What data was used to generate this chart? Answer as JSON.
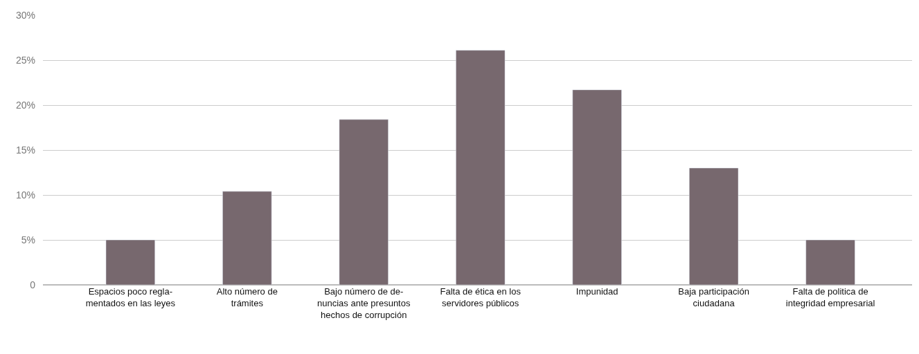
{
  "chart_data": {
    "type": "bar",
    "categories": [
      "Espacios poco regla-\nmentados en las leyes",
      "Alto número de\ntrámites",
      "Bajo número de de-\nnuncias ante presuntos\nhechos de corrupción",
      "Falta de ética en los\nservidores públicos",
      "Impunidad",
      "Baja participación\nciudadana",
      "Falta de politica de\nintegridad empresarial"
    ],
    "values": [
      5.0,
      10.4,
      18.4,
      26.1,
      21.7,
      13.0,
      5.0
    ],
    "color": "#77686e",
    "ylim": [
      0,
      30
    ],
    "yticks": [
      {
        "value": 0,
        "label": "0"
      },
      {
        "value": 5,
        "label": "5%"
      },
      {
        "value": 10,
        "label": "10%"
      },
      {
        "value": 15,
        "label": "15%"
      },
      {
        "value": 20,
        "label": "20%"
      },
      {
        "value": 25,
        "label": "25%"
      },
      {
        "value": 30,
        "label": "30%"
      }
    ],
    "grid": "y"
  }
}
